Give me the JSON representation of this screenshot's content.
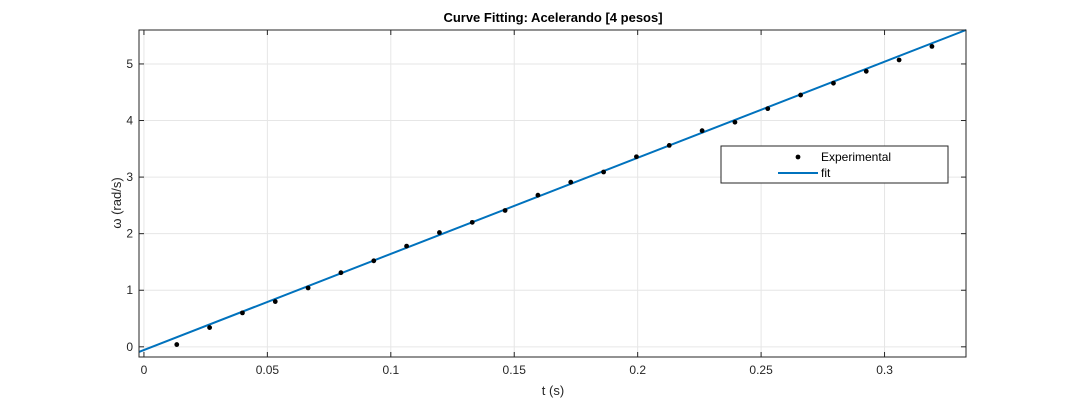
{
  "chart_data": {
    "type": "scatter",
    "title": "Curve Fitting: Acelerando [4 pesos]",
    "xlabel": "t (s)",
    "ylabel": "ω (rad/s)",
    "xlim": [
      -0.002,
      0.333
    ],
    "ylim": [
      -0.18,
      5.6
    ],
    "xticks": [
      0,
      0.05,
      0.1,
      0.15,
      0.2,
      0.25,
      0.3
    ],
    "xtick_labels": [
      "0",
      "0.05",
      "0.1",
      "0.15",
      "0.2",
      "0.25",
      "0.3"
    ],
    "yticks": [
      0,
      1,
      2,
      3,
      4,
      5
    ],
    "ytick_labels": [
      "0",
      "1",
      "2",
      "3",
      "4",
      "5"
    ],
    "grid": true,
    "legend_position": "right",
    "series": [
      {
        "name": "Experimental",
        "kind": "markers",
        "color": "#000000",
        "x": [
          0.0133,
          0.0266,
          0.0399,
          0.0532,
          0.0665,
          0.0798,
          0.0931,
          0.1064,
          0.1197,
          0.133,
          0.1463,
          0.1596,
          0.1729,
          0.1862,
          0.1995,
          0.2128,
          0.2261,
          0.2394,
          0.2527,
          0.266,
          0.2793,
          0.2926,
          0.3059,
          0.3192
        ],
        "y": [
          0.04,
          0.34,
          0.6,
          0.8,
          1.04,
          1.31,
          1.52,
          1.78,
          2.02,
          2.2,
          2.41,
          2.68,
          2.91,
          3.09,
          3.36,
          3.56,
          3.82,
          3.97,
          4.21,
          4.45,
          4.66,
          4.87,
          5.07,
          5.31
        ]
      },
      {
        "name": "fit",
        "kind": "line",
        "color": "#0072bd",
        "x": [
          -0.002,
          0.333
        ],
        "y": [
          -0.09,
          5.6
        ]
      }
    ]
  }
}
